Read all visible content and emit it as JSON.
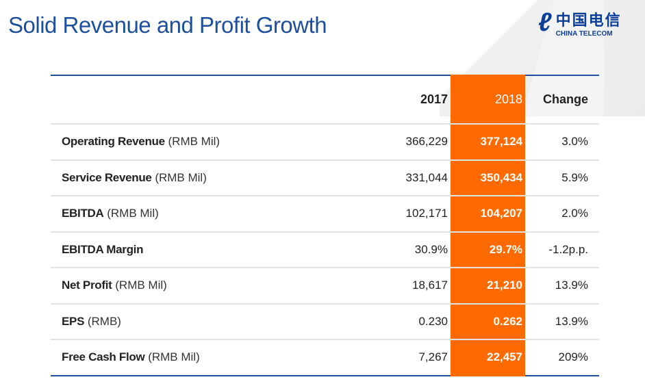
{
  "title": "Solid Revenue and Profit Growth",
  "logo": {
    "cn": "中国电信",
    "en": "CHINA TELECOM"
  },
  "colors": {
    "accent": "#ff6a00",
    "brand": "#1d4f9c"
  },
  "table": {
    "headers": [
      "",
      "2017",
      "2018",
      "Change"
    ],
    "rows": [
      {
        "label": "Operating Revenue",
        "unit": "(RMB Mil)",
        "y2017": "366,229",
        "y2018": "377,124",
        "change": "3.0%"
      },
      {
        "label": "Service Revenue",
        "unit": "(RMB Mil)",
        "y2017": "331,044",
        "y2018": "350,434",
        "change": "5.9%"
      },
      {
        "label": "EBITDA",
        "unit": "(RMB Mil)",
        "y2017": "102,171",
        "y2018": "104,207",
        "change": "2.0%"
      },
      {
        "label": "EBITDA Margin",
        "unit": "",
        "y2017": "30.9%",
        "y2018": "29.7%",
        "change": "-1.2p.p."
      },
      {
        "label": "Net Profit",
        "unit": "(RMB Mil)",
        "y2017": "18,617",
        "y2018": "21,210",
        "change": "13.9%"
      },
      {
        "label": "EPS",
        "unit": "(RMB)",
        "y2017": "0.230",
        "y2018": "0.262",
        "change": "13.9%"
      },
      {
        "label": "Free Cash Flow",
        "unit": "(RMB Mil)",
        "y2017": "7,267",
        "y2018": "22,457",
        "change": "209%"
      }
    ]
  }
}
